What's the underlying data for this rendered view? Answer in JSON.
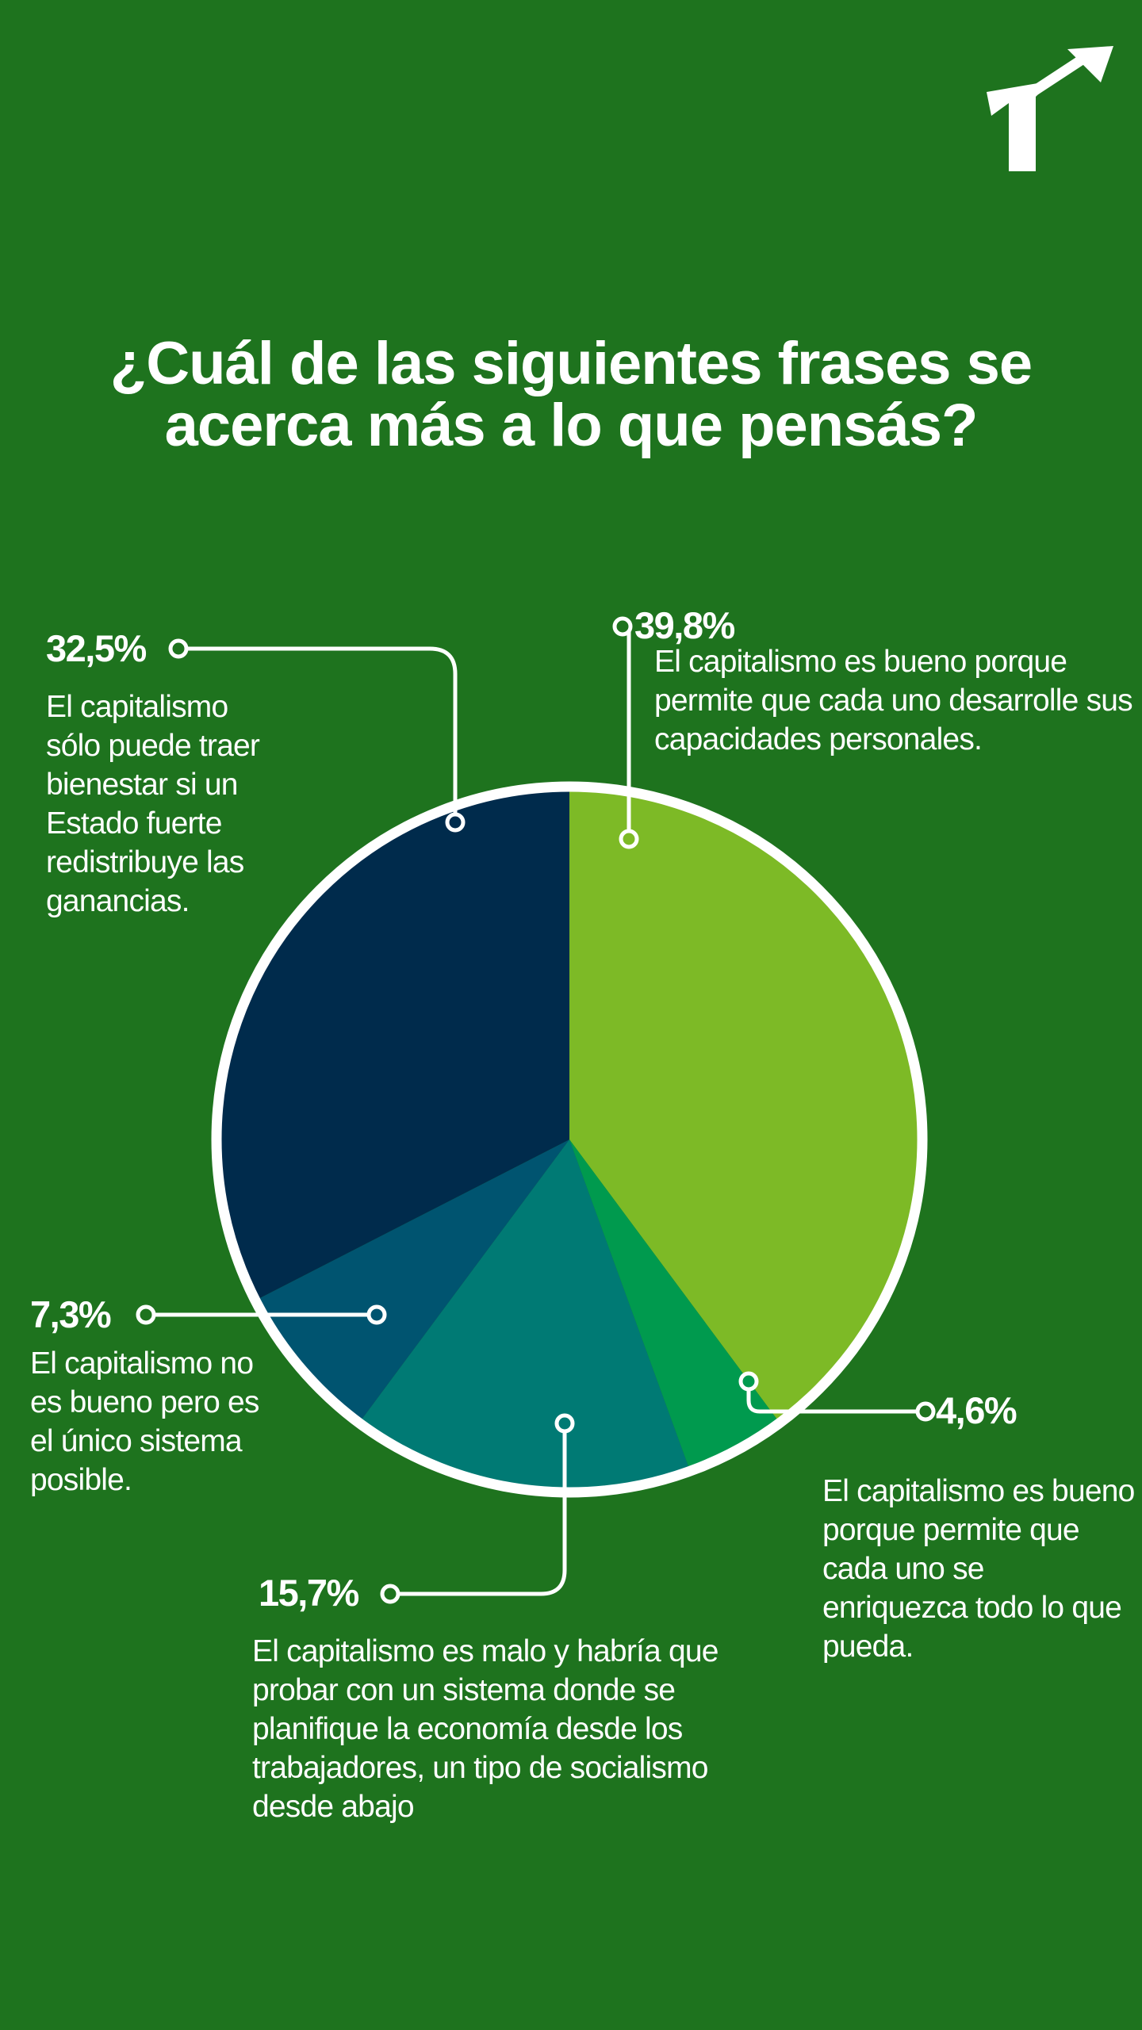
{
  "title_lines": [
    "¿Cuál de las siguientes frases se",
    "acerca más a lo que pensás?"
  ],
  "colors": {
    "background": "#1e731e",
    "line": "#ffffff"
  },
  "chart_data": {
    "type": "pie",
    "title": "¿Cuál de las siguientes frases se acerca más a lo que pensás?",
    "slices": [
      {
        "label": "39,8%",
        "value": 39.8,
        "color": "#7dba26",
        "description": "El capitalismo es bueno porque permite que cada uno desarrolle sus capacidades personales."
      },
      {
        "label": "4,6%",
        "value": 4.6,
        "color": "#009a4e",
        "description": "El capitalismo es bueno porque permite que cada uno se enriquezca todo lo que pueda."
      },
      {
        "label": "15,7%",
        "value": 15.7,
        "color": "#007a74",
        "description": "El capitalismo es malo y habría que probar con un sistema donde se planifique la economía desde los trabajadores, un tipo de socialismo desde abajo"
      },
      {
        "label": "7,3%",
        "value": 7.3,
        "color": "#005470",
        "description": "El capitalismo no es bueno pero es el único sistema posible."
      },
      {
        "label": "32,5%",
        "value": 32.5,
        "color": "#002b4c",
        "description": "El capitalismo sólo puede traer bienestar si un Estado fuerte redistribuye las ganancias."
      }
    ]
  }
}
